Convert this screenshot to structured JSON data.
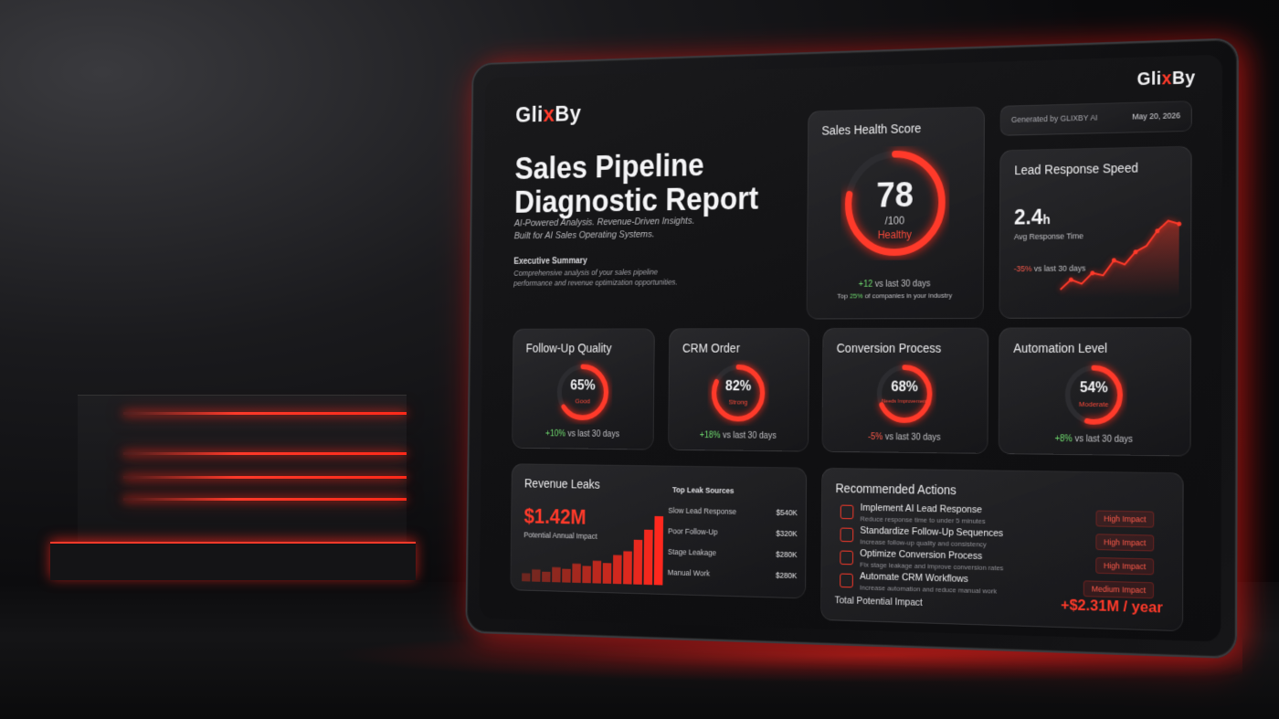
{
  "brand": {
    "logo_main": "Gli",
    "logo_x": "x",
    "logo_end": "By"
  },
  "header": {
    "generated_by": "Generated by GLIXBY AI",
    "date": "May 20, 2026"
  },
  "report": {
    "title_line1": "Sales Pipeline",
    "title_line2": "Diagnostic Report",
    "subtitle_line1": "AI-Powered Analysis. Revenue-Driven Insights.",
    "subtitle_line2": "Built for AI Sales Operating Systems.",
    "exec_title": "Executive Summary",
    "exec_line1": "Comprehensive analysis of your sales pipeline",
    "exec_line2": "performance and revenue optimization opportunities."
  },
  "health": {
    "title": "Sales Health Score",
    "score": "78",
    "out_of": "/100",
    "status": "Healthy",
    "score_fraction": 0.78,
    "delta_value": "+12",
    "delta_text": "vs last 30 days",
    "rank_prefix": "Top",
    "rank_value": "25%",
    "rank_text": "of companies in your industry"
  },
  "response": {
    "title": "Lead Response Speed",
    "value": "2.4",
    "unit": "h",
    "label": "Avg Response Time",
    "delta_value": "-35%",
    "delta_text": "vs last 30 days"
  },
  "metrics": [
    {
      "title": "Follow-Up Quality",
      "value": "65%",
      "status": "Good",
      "fraction": 0.65,
      "delta_value": "+10%",
      "delta_text": "vs last 30 days",
      "positive": true
    },
    {
      "title": "CRM Order",
      "value": "82%",
      "status": "Strong",
      "fraction": 0.82,
      "delta_value": "+18%",
      "delta_text": "vs last 30 days",
      "positive": true
    },
    {
      "title": "Conversion Process",
      "value": "68%",
      "status": "Needs Improvement",
      "fraction": 0.68,
      "delta_value": "-5%",
      "delta_text": "vs last 30 days",
      "positive": false
    },
    {
      "title": "Automation Level",
      "value": "54%",
      "status": "Moderate",
      "fraction": 0.54,
      "delta_value": "+8%",
      "delta_text": "vs last 30 days",
      "positive": true
    }
  ],
  "leaks": {
    "title": "Revenue Leaks",
    "amount": "$1.42M",
    "amount_label": "Potential Annual Impact",
    "sources_title": "Top Leak Sources",
    "sources": [
      {
        "name": "Slow Lead Response",
        "amount": "$540K"
      },
      {
        "name": "Poor Follow-Up",
        "amount": "$320K"
      },
      {
        "name": "Stage Leakage",
        "amount": "$280K"
      },
      {
        "name": "Manual Work",
        "amount": "$280K"
      }
    ]
  },
  "actions": {
    "title": "Recommended Actions",
    "items": [
      {
        "title": "Implement AI Lead Response",
        "desc": "Reduce response time to under 5 minutes",
        "badge": "High Impact"
      },
      {
        "title": "Standardize Follow-Up Sequences",
        "desc": "Increase follow-up quality and consistency",
        "badge": "High Impact"
      },
      {
        "title": "Optimize Conversion Process",
        "desc": "Fix stage leakage and improve conversion rates",
        "badge": "High Impact"
      },
      {
        "title": "Automate CRM Workflows",
        "desc": "Increase automation and reduce manual work",
        "badge": "Medium Impact"
      }
    ],
    "total_label": "Total Potential Impact",
    "total_value": "+$2.31M / year"
  },
  "colors": {
    "accent": "#ff3a2a",
    "positive": "#6fdc6f",
    "background": "#0a0a0c"
  },
  "chart_data": [
    {
      "type": "line",
      "title": "Lead Response Speed",
      "x": [
        1,
        2,
        3,
        4,
        5,
        6,
        7,
        8,
        9,
        10,
        11,
        12
      ],
      "series": [
        {
          "values": [
            10,
            22,
            17,
            30,
            27,
            45,
            40,
            55,
            62,
            80,
            92,
            88
          ]
        }
      ],
      "grid": false
    },
    {
      "type": "bar",
      "title": "Revenue Leaks",
      "categories": [
        "1",
        "2",
        "3",
        "4",
        "5",
        "6",
        "7",
        "8",
        "9",
        "10",
        "11",
        "12",
        "13",
        "14"
      ],
      "values": [
        12,
        18,
        15,
        22,
        20,
        28,
        25,
        33,
        30,
        42,
        48,
        65,
        80,
        100
      ],
      "grid": false
    }
  ]
}
